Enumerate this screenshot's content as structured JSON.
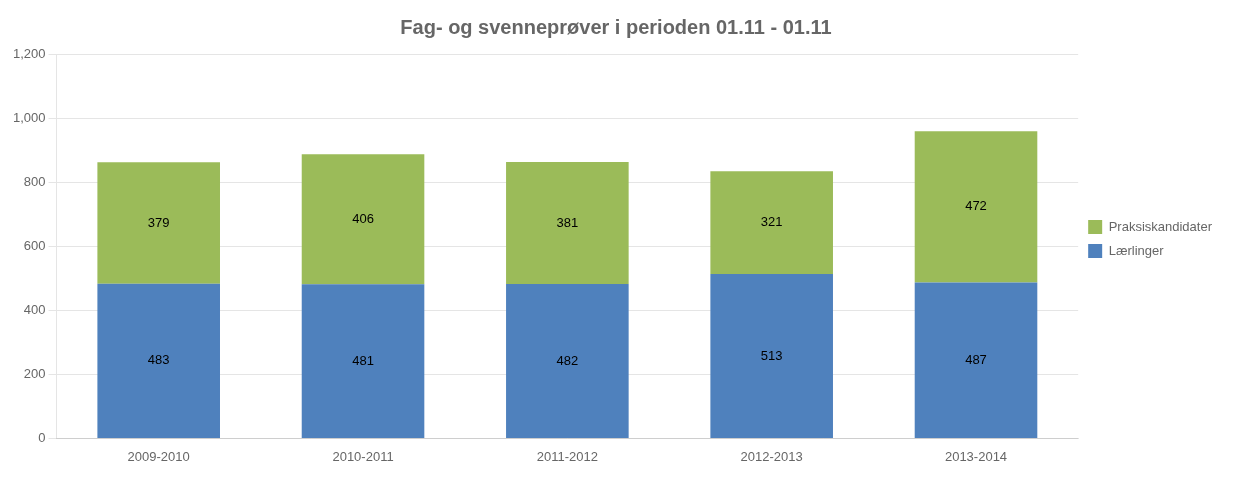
{
  "chart_data": {
    "type": "bar",
    "title": "Fag- og svenneprøver i perioden 01.11 - 01.11",
    "categories": [
      "2009-2010",
      "2010-2011",
      "2011-2012",
      "2012-2013",
      "2013-2014"
    ],
    "series": [
      {
        "name": "Lærlinger",
        "color": "#4F81BD",
        "values": [
          483,
          481,
          482,
          513,
          487
        ]
      },
      {
        "name": "Praksiskandidater",
        "color": "#9BBB59",
        "values": [
          379,
          406,
          381,
          321,
          472
        ]
      }
    ],
    "stacked": true,
    "ylim": [
      0,
      1200
    ],
    "yticks": [
      0,
      200,
      400,
      600,
      800,
      1000,
      1200
    ],
    "grid": true,
    "legend": "right",
    "data_labels": true
  }
}
